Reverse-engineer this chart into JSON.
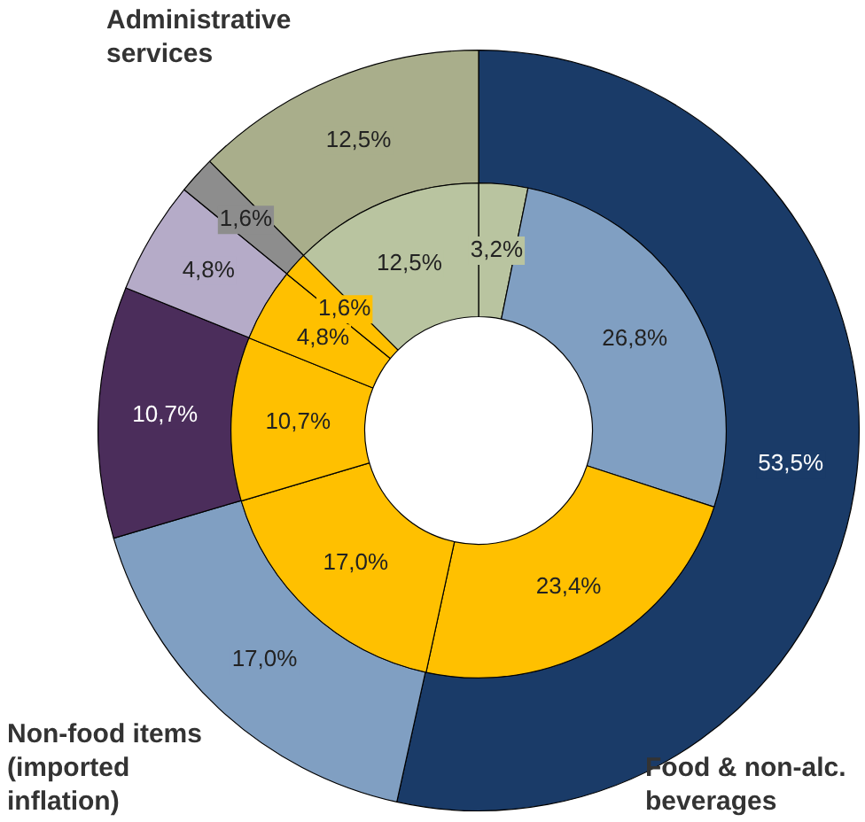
{
  "chart_data": [
    {
      "type": "donut",
      "data_labels": true,
      "categories": [
        "Food & non-alc. beverages",
        "Non-food items (imported inflation)",
        null,
        null,
        null,
        "Administrative services"
      ],
      "values": [
        53.5,
        17.0,
        10.7,
        4.8,
        1.6,
        12.5
      ],
      "value_labels": [
        "53,5%",
        "17,0%",
        "10,7%",
        "4,8%",
        "1,6%",
        "12,5%"
      ],
      "colors": [
        "#1a3b68",
        "#809fc2",
        "#4b2d5b",
        "#b5abc8",
        "#8d8d8d",
        "#a9ae8b"
      ]
    },
    {
      "type": "donut",
      "data_labels": true,
      "categories": [
        null,
        null,
        null,
        null,
        null,
        null,
        null,
        null
      ],
      "values": [
        3.2,
        26.8,
        23.4,
        17.0,
        10.7,
        4.8,
        1.6,
        12.5
      ],
      "value_labels": [
        "3,2%",
        "26,8%",
        "23,4%",
        "17,0%",
        "10,7%",
        "4,8%",
        "1,6%",
        "12,5%"
      ],
      "colors": [
        "#b9c4a0",
        "#809fc2",
        "#ffc000",
        "#ffc000",
        "#ffc000",
        "#ffc000",
        "#ffc000",
        "#b9c4a0"
      ]
    }
  ]
}
